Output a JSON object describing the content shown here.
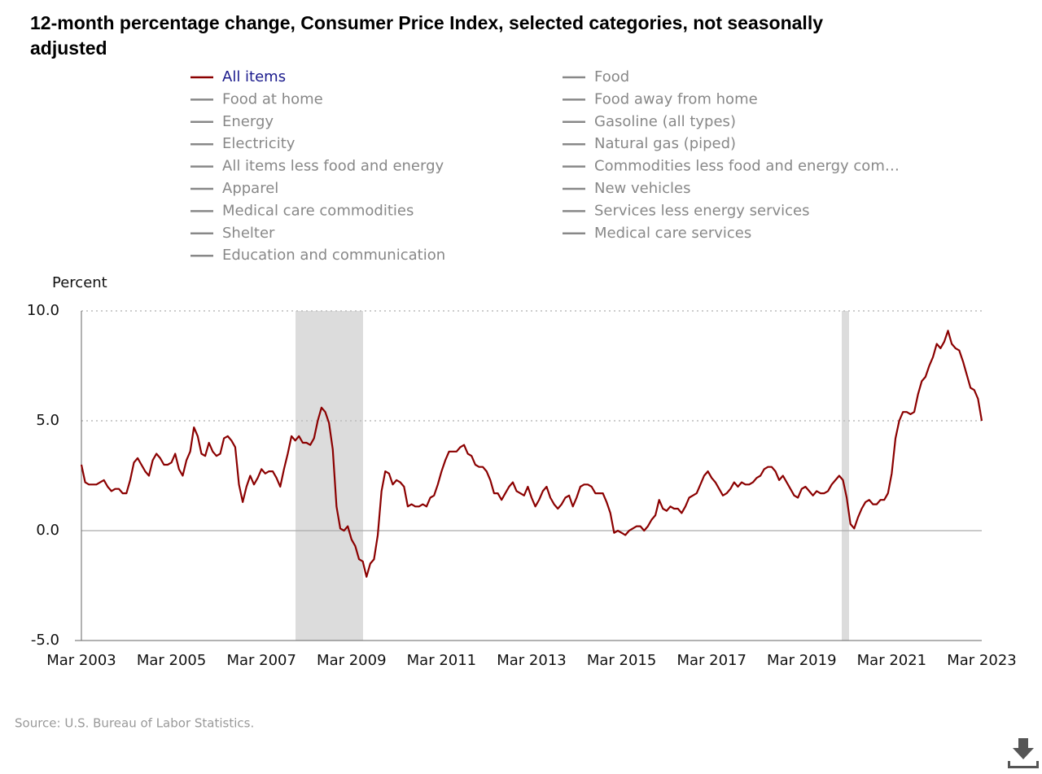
{
  "chart_data": {
    "type": "line",
    "title_lines": [
      "12-month percentage change, Consumer Price Index, selected categories, not seasonally",
      "adjusted"
    ],
    "y_label": "Percent",
    "source": "Source: U.S. Bureau of Labor Statistics.",
    "categories": [
      "Mar 2003",
      null,
      null,
      null,
      null,
      null,
      null,
      null,
      null,
      null,
      null,
      null,
      null,
      null,
      null,
      null,
      null,
      null,
      null,
      null,
      null,
      null,
      null,
      null,
      "Mar 2005",
      null,
      null,
      null,
      null,
      null,
      null,
      null,
      null,
      null,
      null,
      null,
      null,
      null,
      null,
      null,
      null,
      null,
      null,
      null,
      null,
      null,
      null,
      null,
      "Mar 2007",
      null,
      null,
      null,
      null,
      null,
      null,
      null,
      null,
      null,
      null,
      null,
      null,
      null,
      null,
      null,
      null,
      null,
      null,
      null,
      null,
      null,
      null,
      null,
      "Mar 2009",
      null,
      null,
      null,
      null,
      null,
      null,
      null,
      null,
      null,
      null,
      null,
      null,
      null,
      null,
      null,
      null,
      null,
      null,
      null,
      null,
      null,
      null,
      null,
      "Mar 2011",
      null,
      null,
      null,
      null,
      null,
      null,
      null,
      null,
      null,
      null,
      null,
      null,
      null,
      null,
      null,
      null,
      null,
      null,
      null,
      null,
      null,
      null,
      null,
      "Mar 2013",
      null,
      null,
      null,
      null,
      null,
      null,
      null,
      null,
      null,
      null,
      null,
      null,
      null,
      null,
      null,
      null,
      null,
      null,
      null,
      null,
      null,
      null,
      null,
      "Mar 2015",
      null,
      null,
      null,
      null,
      null,
      null,
      null,
      null,
      null,
      null,
      null,
      null,
      null,
      null,
      null,
      null,
      null,
      null,
      null,
      null,
      null,
      null,
      null,
      "Mar 2017",
      null,
      null,
      null,
      null,
      null,
      null,
      null,
      null,
      null,
      null,
      null,
      null,
      null,
      null,
      null,
      null,
      null,
      null,
      null,
      null,
      null,
      null,
      null,
      "Mar 2019",
      null,
      null,
      null,
      null,
      null,
      null,
      null,
      null,
      null,
      null,
      null,
      null,
      null,
      null,
      null,
      null,
      null,
      null,
      null,
      null,
      null,
      null,
      null,
      "Mar 2021",
      null,
      null,
      null,
      null,
      null,
      null,
      null,
      null,
      null,
      null,
      null,
      null,
      null,
      null,
      null,
      null,
      null,
      null,
      null,
      null,
      null,
      null,
      null,
      "Mar 2023"
    ],
    "series": [
      {
        "name": "All items",
        "color": "#8b0000",
        "selected": true,
        "values": [
          3.0,
          2.2,
          2.1,
          2.1,
          2.1,
          2.2,
          2.3,
          2.0,
          1.8,
          1.9,
          1.9,
          1.7,
          1.7,
          2.3,
          3.1,
          3.3,
          3.0,
          2.7,
          2.5,
          3.2,
          3.5,
          3.3,
          3.0,
          3.0,
          3.1,
          3.5,
          2.8,
          2.5,
          3.2,
          3.6,
          4.7,
          4.3,
          3.5,
          3.4,
          4.0,
          3.6,
          3.4,
          3.5,
          4.2,
          4.3,
          4.1,
          3.8,
          2.1,
          1.3,
          2.0,
          2.5,
          2.1,
          2.4,
          2.8,
          2.6,
          2.7,
          2.7,
          2.4,
          2.0,
          2.8,
          3.5,
          4.3,
          4.1,
          4.3,
          4.0,
          4.0,
          3.9,
          4.2,
          5.0,
          5.6,
          5.4,
          4.9,
          3.7,
          1.1,
          0.1,
          0.0,
          0.2,
          -0.4,
          -0.7,
          -1.3,
          -1.4,
          -2.1,
          -1.5,
          -1.3,
          -0.2,
          1.8,
          2.7,
          2.6,
          2.1,
          2.3,
          2.2,
          2.0,
          1.1,
          1.2,
          1.1,
          1.1,
          1.2,
          1.1,
          1.5,
          1.6,
          2.1,
          2.7,
          3.2,
          3.6,
          3.6,
          3.6,
          3.8,
          3.9,
          3.5,
          3.4,
          3.0,
          2.9,
          2.9,
          2.7,
          2.3,
          1.7,
          1.7,
          1.4,
          1.7,
          2.0,
          2.2,
          1.8,
          1.7,
          1.6,
          2.0,
          1.5,
          1.1,
          1.4,
          1.8,
          2.0,
          1.5,
          1.2,
          1.0,
          1.2,
          1.5,
          1.6,
          1.1,
          1.5,
          2.0,
          2.1,
          2.1,
          2.0,
          1.7,
          1.7,
          1.7,
          1.3,
          0.8,
          -0.1,
          0.0,
          -0.1,
          -0.2,
          0.0,
          0.1,
          0.2,
          0.2,
          0.0,
          0.2,
          0.5,
          0.7,
          1.4,
          1.0,
          0.9,
          1.1,
          1.0,
          1.0,
          0.8,
          1.1,
          1.5,
          1.6,
          1.7,
          2.1,
          2.5,
          2.7,
          2.4,
          2.2,
          1.9,
          1.6,
          1.7,
          1.9,
          2.2,
          2.0,
          2.2,
          2.1,
          2.1,
          2.2,
          2.4,
          2.5,
          2.8,
          2.9,
          2.9,
          2.7,
          2.3,
          2.5,
          2.2,
          1.9,
          1.6,
          1.5,
          1.9,
          2.0,
          1.8,
          1.6,
          1.8,
          1.7,
          1.7,
          1.8,
          2.1,
          2.3,
          2.5,
          2.3,
          1.5,
          0.3,
          0.1,
          0.6,
          1.0,
          1.3,
          1.4,
          1.2,
          1.2,
          1.4,
          1.4,
          1.7,
          2.6,
          4.2,
          5.0,
          5.4,
          5.4,
          5.3,
          5.4,
          6.2,
          6.8,
          7.0,
          7.5,
          7.9,
          8.5,
          8.3,
          8.6,
          9.1,
          8.5,
          8.3,
          8.2,
          7.7,
          7.1,
          6.5,
          6.4,
          6.0,
          5.0
        ]
      },
      {
        "name": "Food",
        "color": "#888888"
      },
      {
        "name": "Food at home",
        "color": "#888888"
      },
      {
        "name": "Food away from home",
        "color": "#888888"
      },
      {
        "name": "Energy",
        "color": "#888888"
      },
      {
        "name": "Gasoline (all types)",
        "color": "#888888"
      },
      {
        "name": "Electricity",
        "color": "#888888"
      },
      {
        "name": "Natural gas (piped)",
        "color": "#888888"
      },
      {
        "name": "All items less food and energy",
        "color": "#888888"
      },
      {
        "name": "Commodities less food and energy com…",
        "color": "#888888"
      },
      {
        "name": "Apparel",
        "color": "#888888"
      },
      {
        "name": "New vehicles",
        "color": "#888888"
      },
      {
        "name": "Medical care commodities",
        "color": "#888888"
      },
      {
        "name": "Services less energy services",
        "color": "#888888"
      },
      {
        "name": "Shelter",
        "color": "#888888"
      },
      {
        "name": "Medical care services",
        "color": "#888888"
      },
      {
        "name": "Education and communication",
        "color": "#888888"
      }
    ],
    "ylim": [
      -5,
      10
    ],
    "yticks": [
      {
        "value": -5,
        "label": "-5.0"
      },
      {
        "value": 0,
        "label": "0.0"
      },
      {
        "value": 5,
        "label": "5.0"
      },
      {
        "value": 10,
        "label": "10.0"
      }
    ],
    "grid": true
  }
}
